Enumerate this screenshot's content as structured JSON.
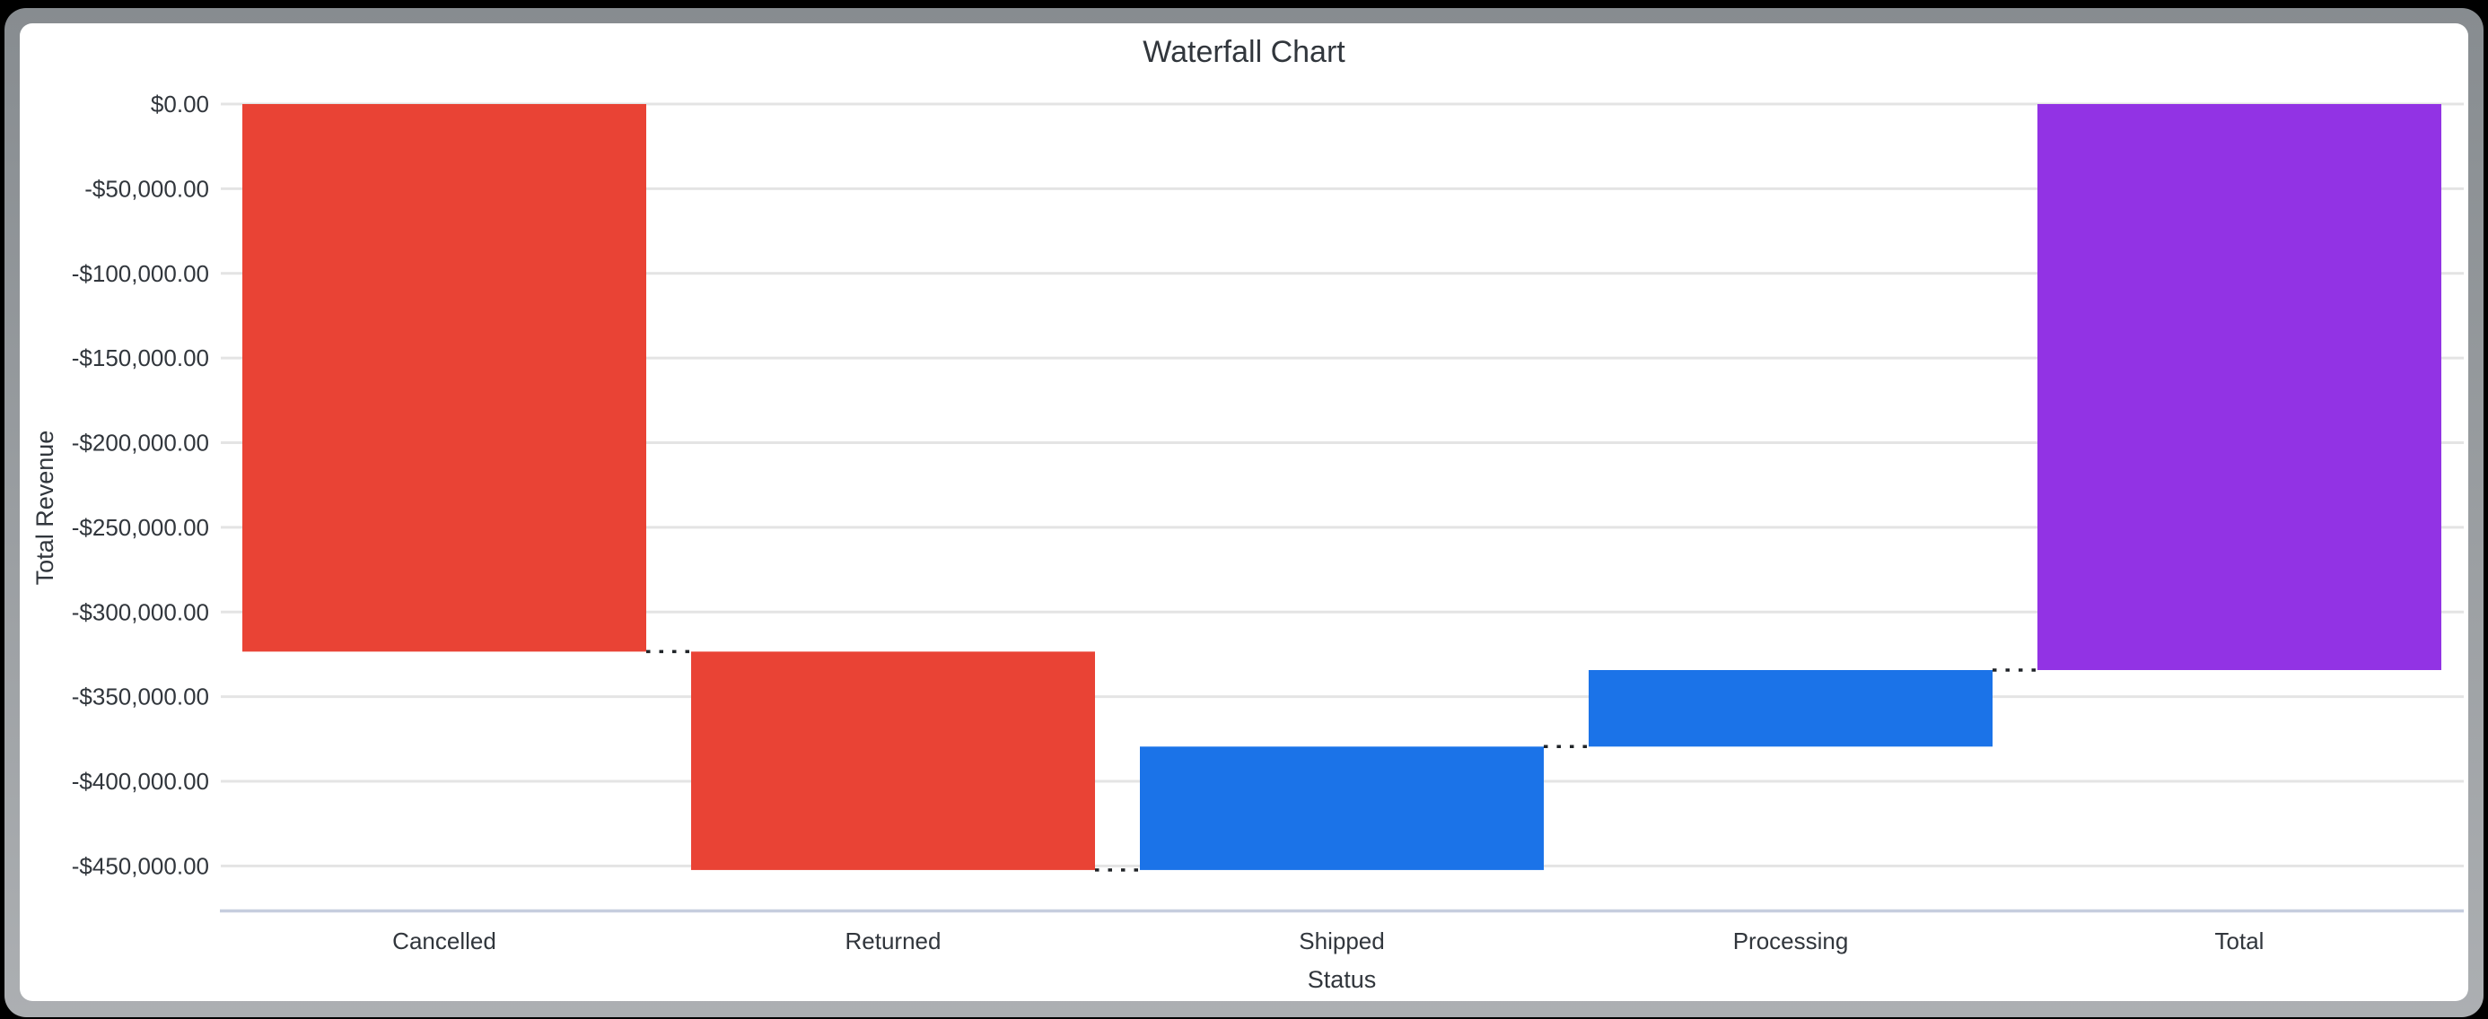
{
  "window": {
    "outer_background": "#000000",
    "frame_color": "#969A9E",
    "card_color": "#FFFFFF"
  },
  "chart_data": {
    "type": "bar",
    "subtype": "waterfall",
    "title": "Waterfall Chart",
    "xlabel": "Status",
    "ylabel": "Total Revenue",
    "categories": [
      "Cancelled",
      "Returned",
      "Shipped",
      "Processing",
      "Total"
    ],
    "bars": [
      {
        "category": "Cancelled",
        "start": 0,
        "end": -323400,
        "color": "#E94335",
        "role": "decrease"
      },
      {
        "category": "Returned",
        "start": -323400,
        "end": -452400,
        "color": "#E94335",
        "role": "decrease"
      },
      {
        "category": "Shipped",
        "start": -452400,
        "end": -379500,
        "color": "#1B73E8",
        "role": "increase"
      },
      {
        "category": "Processing",
        "start": -379500,
        "end": -334300,
        "color": "#1B73E8",
        "role": "increase"
      },
      {
        "category": "Total",
        "start": 0,
        "end": -334300,
        "color": "#9233E4",
        "role": "total"
      }
    ],
    "y_ticks": [
      {
        "value": 0,
        "label": "$0.00"
      },
      {
        "value": -50000,
        "label": "-$50,000.00"
      },
      {
        "value": -100000,
        "label": "-$100,000.00"
      },
      {
        "value": -150000,
        "label": "-$150,000.00"
      },
      {
        "value": -200000,
        "label": "-$200,000.00"
      },
      {
        "value": -250000,
        "label": "-$250,000.00"
      },
      {
        "value": -300000,
        "label": "-$300,000.00"
      },
      {
        "value": -350000,
        "label": "-$350,000.00"
      },
      {
        "value": -400000,
        "label": "-$400,000.00"
      },
      {
        "value": -450000,
        "label": "-$450,000.00"
      }
    ],
    "ylim": [
      0,
      -476500
    ],
    "grid": true,
    "legend": false,
    "connectors": "dotted",
    "styles": {
      "grid_color": "#E4E4E4",
      "axis_line_color": "#C6CDDE",
      "text_color": "#31363C",
      "connector_color": "#202428"
    }
  }
}
